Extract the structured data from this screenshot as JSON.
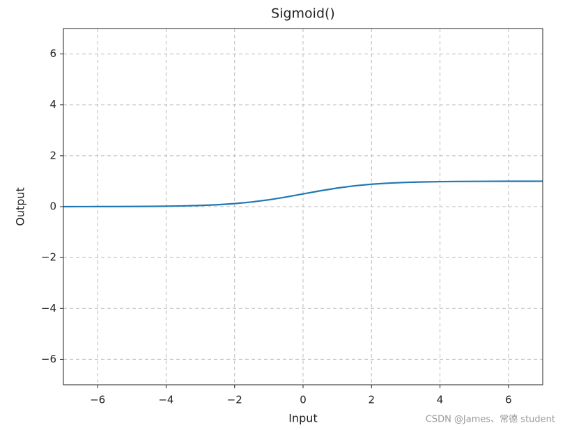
{
  "chart_data": {
    "type": "line",
    "title": "Sigmoid()",
    "xlabel": "Input",
    "ylabel": "Output",
    "x": [
      -7,
      -6.5,
      -6,
      -5.5,
      -5,
      -4.5,
      -4,
      -3.5,
      -3,
      -2.5,
      -2,
      -1.5,
      -1,
      -0.5,
      0,
      0.5,
      1,
      1.5,
      2,
      2.5,
      3,
      3.5,
      4,
      4.5,
      5,
      5.5,
      6,
      6.5,
      7
    ],
    "series": [
      {
        "name": "Sigmoid",
        "color": "#1f77b4",
        "values": [
          0.0009,
          0.0015,
          0.0025,
          0.0041,
          0.0067,
          0.011,
          0.018,
          0.029,
          0.047,
          0.076,
          0.119,
          0.182,
          0.269,
          0.378,
          0.5,
          0.622,
          0.731,
          0.818,
          0.881,
          0.924,
          0.953,
          0.971,
          0.982,
          0.989,
          0.9933,
          0.9959,
          0.9975,
          0.9985,
          0.9991
        ]
      }
    ],
    "xlim": [
      -7,
      7
    ],
    "xticks": [
      {
        "value": -6,
        "label": "−6"
      },
      {
        "value": -4,
        "label": "−4"
      },
      {
        "value": -2,
        "label": "−2"
      },
      0,
      2,
      4,
      6
    ],
    "ylim": [
      -7,
      7
    ],
    "yticks": [
      {
        "value": -6,
        "label": "−6"
      },
      {
        "value": -4,
        "label": "−4"
      },
      {
        "value": -2,
        "label": "−2"
      },
      0,
      2,
      4,
      6
    ],
    "grid": true,
    "watermark": "CSDN @James、常德 student"
  }
}
